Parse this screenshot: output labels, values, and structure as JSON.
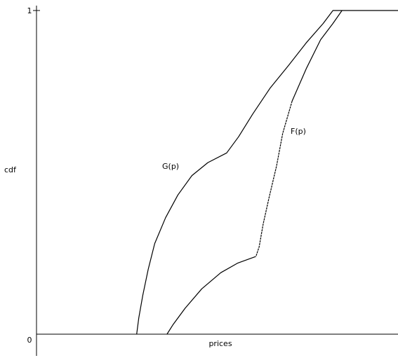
{
  "chart_data": {
    "type": "line",
    "title": "",
    "xlabel": "prices",
    "ylabel": "cdf",
    "yticks": [
      {
        "value": 0,
        "label": "0"
      },
      {
        "value": 1,
        "label": "1"
      }
    ],
    "ylim": [
      0,
      1
    ],
    "xlim": [
      0,
      1
    ],
    "grid": false,
    "legend": "none",
    "series": [
      {
        "name": "G(p)",
        "color": "#000000",
        "points": [
          [
            0.277,
            0.0
          ],
          [
            0.283,
            0.05
          ],
          [
            0.294,
            0.12
          ],
          [
            0.309,
            0.2
          ],
          [
            0.327,
            0.28
          ],
          [
            0.357,
            0.36
          ],
          [
            0.391,
            0.43
          ],
          [
            0.43,
            0.49
          ],
          [
            0.474,
            0.53
          ],
          [
            0.526,
            0.56
          ],
          [
            0.559,
            0.61
          ],
          [
            0.598,
            0.68
          ],
          [
            0.646,
            0.76
          ],
          [
            0.697,
            0.83
          ],
          [
            0.746,
            0.9
          ],
          [
            0.793,
            0.96
          ],
          [
            0.82,
            1.0
          ],
          [
            1.0,
            1.0
          ]
        ]
      },
      {
        "name": "F(p)",
        "color": "#000000",
        "points": [
          [
            0.361,
            0.0
          ],
          [
            0.378,
            0.03
          ],
          [
            0.411,
            0.08
          ],
          [
            0.457,
            0.14
          ],
          [
            0.51,
            0.19
          ],
          [
            0.557,
            0.22
          ],
          [
            0.607,
            0.24
          ],
          [
            0.616,
            0.27
          ],
          [
            0.627,
            0.34
          ],
          [
            0.643,
            0.42
          ],
          [
            0.664,
            0.52
          ],
          [
            0.681,
            0.62
          ],
          [
            0.707,
            0.72
          ],
          [
            0.746,
            0.82
          ],
          [
            0.786,
            0.91
          ],
          [
            0.82,
            0.96
          ],
          [
            0.845,
            1.0
          ]
        ]
      }
    ],
    "annotations": [
      {
        "text": "G(p)",
        "series": "G(p)"
      },
      {
        "text": "F(p)",
        "series": "F(p)"
      }
    ]
  }
}
